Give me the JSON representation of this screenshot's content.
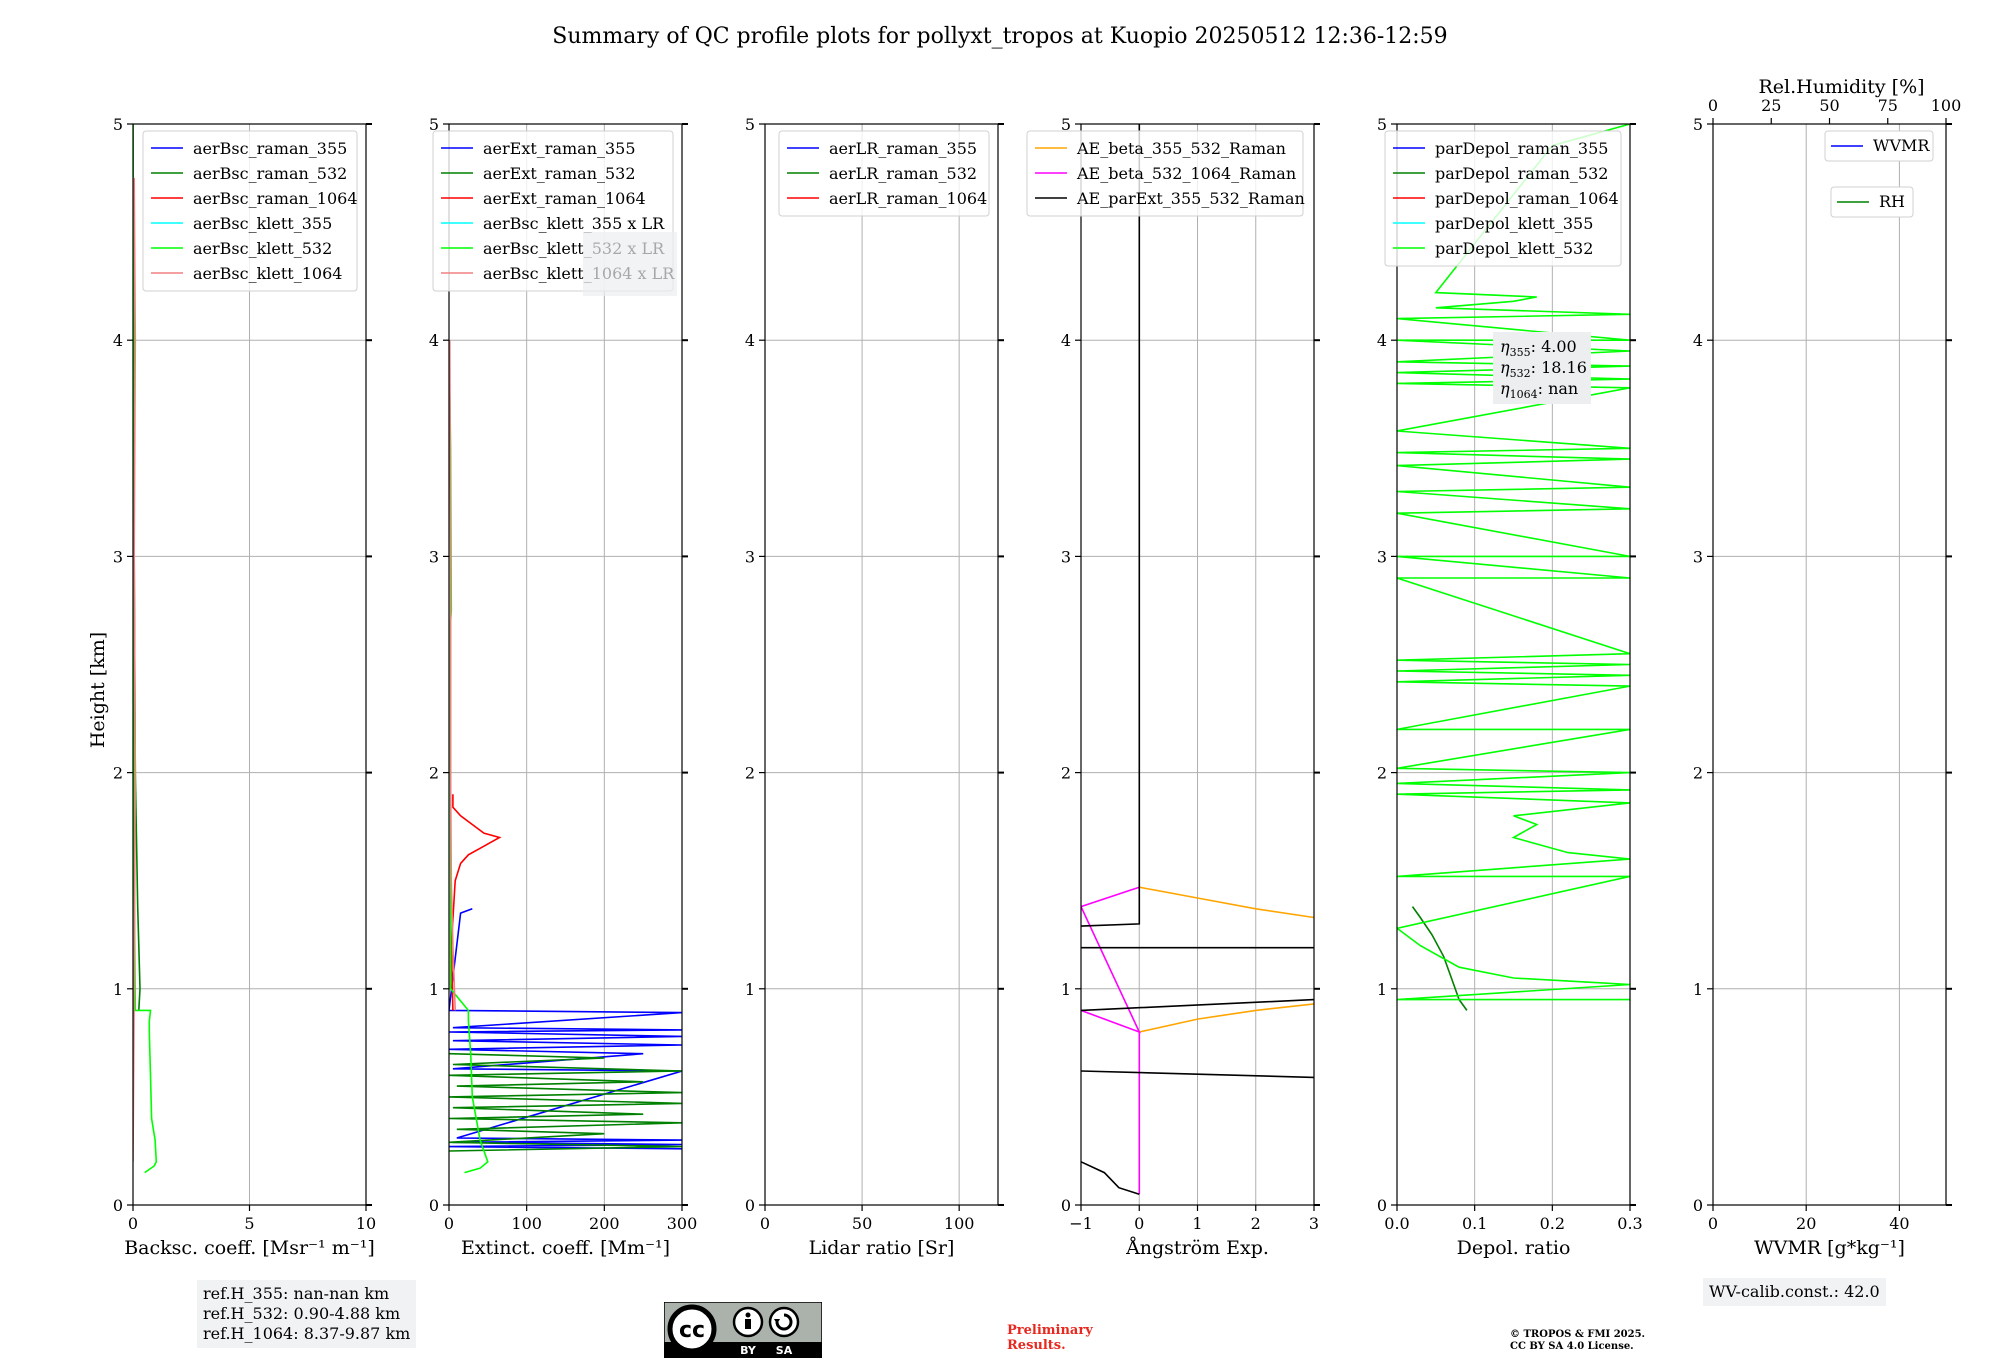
{
  "title": "Summary of QC profile plots for pollyxt_tropos at Kuopio 20250512 12:36-12:59",
  "chart_data": [
    {
      "type": "line",
      "panel": "backscatter",
      "xlabel": "Backsc. coeff. [Msr$^{-1}$ m$^{-1}$]",
      "xlabel_display": "Backsc. coeff. [Msr⁻¹ m⁻¹]",
      "ylabel": "Height [km]",
      "xlim": [
        0,
        10
      ],
      "ylim": [
        0,
        5
      ],
      "xticks": [
        0,
        5,
        10
      ],
      "yticks": [
        0,
        1,
        2,
        3,
        4,
        5
      ],
      "grid": true,
      "legend": "upper-right",
      "series": [
        {
          "name": "aerBsc_raman_355",
          "color": "#0000ff",
          "x": [],
          "y": []
        },
        {
          "name": "aerBsc_raman_532",
          "color": "#008000",
          "x": [
            0.25,
            0.3,
            0.25,
            0.2,
            0.1,
            0.05,
            0.0
          ],
          "y": [
            0.9,
            1.0,
            1.2,
            1.38,
            2.0,
            3.0,
            5.0
          ]
        },
        {
          "name": "aerBsc_raman_1064",
          "color": "#ff0000",
          "x": [],
          "y": []
        },
        {
          "name": "aerBsc_klett_355",
          "color": "#00ffff",
          "x": [],
          "y": []
        },
        {
          "name": "aerBsc_klett_532",
          "color": "#00ff00",
          "x": [
            0.5,
            0.9,
            1.0,
            0.95,
            0.8,
            0.75,
            0.7,
            0.7,
            0.75,
            0.1,
            0.05,
            0.05,
            0.0
          ],
          "y": [
            0.15,
            0.18,
            0.2,
            0.3,
            0.4,
            0.6,
            0.8,
            0.85,
            0.9,
            0.9,
            1.5,
            3.0,
            5.0
          ]
        },
        {
          "name": "aerBsc_klett_1064",
          "color": "#f08080",
          "x": [
            0.0,
            0.05,
            0.1,
            0.05,
            0.1,
            0.05
          ],
          "y": [
            0.2,
            1.0,
            2.0,
            3.0,
            4.0,
            4.75
          ]
        }
      ]
    },
    {
      "type": "line",
      "panel": "extinction",
      "xlabel": "Extinct. coeff. [Mm$^{-1}$]",
      "xlabel_display": "Extinct. coeff. [Mm⁻¹]",
      "xlim": [
        0,
        300
      ],
      "ylim": [
        0,
        5
      ],
      "xticks": [
        0,
        100,
        200,
        300
      ],
      "yticks": [
        0,
        1,
        2,
        3,
        4,
        5
      ],
      "grid": true,
      "legend": "upper-right",
      "series": [
        {
          "name": "aerExt_raman_355",
          "color": "#0000ff",
          "x": [
            300,
            0,
            300,
            5,
            300,
            10,
            300,
            5,
            250,
            0,
            300,
            5,
            300,
            0,
            300,
            5,
            300,
            0,
            15,
            30
          ],
          "y": [
            0.26,
            0.27,
            0.28,
            0.29,
            0.3,
            0.31,
            0.62,
            0.63,
            0.7,
            0.72,
            0.74,
            0.76,
            0.78,
            0.8,
            0.81,
            0.82,
            0.89,
            0.9,
            1.35,
            1.37
          ]
        },
        {
          "name": "aerExt_raman_532",
          "color": "#008000",
          "x": [
            0,
            300,
            0,
            200,
            10,
            300,
            0,
            250,
            5,
            300,
            0,
            300,
            10,
            250,
            0,
            300,
            5,
            200,
            0
          ],
          "y": [
            0.25,
            0.27,
            0.29,
            0.33,
            0.35,
            0.38,
            0.4,
            0.42,
            0.45,
            0.47,
            0.5,
            0.52,
            0.55,
            0.57,
            0.6,
            0.62,
            0.65,
            0.68,
            0.7
          ]
        },
        {
          "name": "aerExt_raman_1064",
          "color": "#ff0000",
          "x": [
            5,
            3,
            8,
            15,
            25,
            40,
            55,
            65,
            45,
            30,
            15,
            5,
            5
          ],
          "y": [
            0.9,
            1.2,
            1.5,
            1.58,
            1.62,
            1.65,
            1.68,
            1.7,
            1.72,
            1.76,
            1.8,
            1.84,
            1.9
          ]
        },
        {
          "name": "aerBsc_klett_355 x LR",
          "color": "#00ffff",
          "x": [],
          "y": []
        },
        {
          "name": "aerBsc_klett_532 x LR",
          "color": "#00ff00",
          "x": [
            20,
            40,
            50,
            40,
            35,
            30,
            28,
            25,
            25,
            2,
            2,
            3,
            2,
            1
          ],
          "y": [
            0.15,
            0.17,
            0.2,
            0.3,
            0.4,
            0.5,
            0.7,
            0.85,
            0.9,
            1.0,
            2.7,
            2.75,
            3.5,
            3.75
          ]
        },
        {
          "name": "aerBsc_klett_1064 x LR",
          "color": "#f08080",
          "x": [
            8,
            5,
            3,
            2,
            2,
            1
          ],
          "y": [
            0.9,
            1.2,
            1.5,
            2.0,
            3.0,
            4.0
          ]
        }
      ]
    },
    {
      "type": "line",
      "panel": "lidar-ratio",
      "xlabel": "Lidar ratio [Sr]",
      "xlim": [
        0,
        120
      ],
      "ylim": [
        0,
        5
      ],
      "xticks": [
        0,
        50,
        100
      ],
      "yticks": [
        0,
        1,
        2,
        3,
        4,
        5
      ],
      "grid": true,
      "legend": "upper-right",
      "series": [
        {
          "name": "aerLR_raman_355",
          "color": "#0000ff",
          "x": [],
          "y": []
        },
        {
          "name": "aerLR_raman_532",
          "color": "#008000",
          "x": [],
          "y": []
        },
        {
          "name": "aerLR_raman_1064",
          "color": "#ff0000",
          "x": [],
          "y": []
        }
      ]
    },
    {
      "type": "line",
      "panel": "angstrom",
      "xlabel": "Ångström Exp.",
      "xlim": [
        -1,
        3
      ],
      "ylim": [
        0,
        5
      ],
      "xticks": [
        -1,
        0,
        1,
        2,
        3
      ],
      "yticks": [
        0,
        1,
        2,
        3,
        4,
        5
      ],
      "grid": true,
      "legend": "upper-right",
      "series": [
        {
          "name": "AE_beta_355_532_Raman",
          "color": "#ffa500",
          "x": [
            0.0,
            1.0,
            2.0,
            3.0,
            null,
            0.0,
            1.0,
            2.0,
            3.0
          ],
          "y": [
            0.8,
            0.86,
            0.9,
            0.93,
            null,
            1.47,
            1.42,
            1.37,
            1.33
          ]
        },
        {
          "name": "AE_beta_532_1064_Raman",
          "color": "#ff00ff",
          "x": [
            0.0,
            0.0,
            -1.0,
            0.0,
            -1.0,
            0.0
          ],
          "y": [
            0.05,
            0.8,
            0.9,
            0.8,
            1.38,
            1.47
          ]
        },
        {
          "name": "AE_parExt_355_532_Raman",
          "color": "#000000",
          "x": [
            -1.0,
            -0.6,
            -0.35,
            0.0,
            null,
            -1.0,
            3.0,
            null,
            -1.0,
            3.0,
            null,
            -1.0,
            3.0,
            null,
            -1.0,
            0.0,
            0.0
          ],
          "y": [
            0.2,
            0.15,
            0.08,
            0.05,
            null,
            0.62,
            0.59,
            null,
            0.9,
            0.95,
            null,
            1.19,
            1.19,
            null,
            1.29,
            1.3,
            5.0
          ]
        }
      ]
    },
    {
      "type": "line",
      "panel": "depolarization",
      "xlabel": "Depol. ratio",
      "xlim": [
        0.0,
        0.3
      ],
      "ylim": [
        0,
        5
      ],
      "xticks": [
        0.0,
        0.1,
        0.2,
        0.3
      ],
      "yticks": [
        0,
        1,
        2,
        3,
        4,
        5
      ],
      "grid": true,
      "legend": "upper-left",
      "series": [
        {
          "name": "parDepol_raman_355",
          "color": "#0000ff",
          "x": [],
          "y": []
        },
        {
          "name": "parDepol_raman_532",
          "color": "#008000",
          "x": [
            0.09,
            0.08,
            0.07,
            0.06,
            0.045,
            0.03,
            0.02
          ],
          "y": [
            0.9,
            0.95,
            1.05,
            1.15,
            1.25,
            1.33,
            1.38
          ]
        },
        {
          "name": "parDepol_raman_1064",
          "color": "#ff0000",
          "x": [],
          "y": []
        },
        {
          "name": "parDepol_klett_355",
          "color": "#00ffff",
          "x": [],
          "y": []
        },
        {
          "name": "parDepol_klett_532",
          "color": "#00ff00",
          "x": [
            0.3,
            0.0,
            0.3,
            0.25,
            0.15,
            0.08,
            0.03,
            0.0,
            0.3,
            0.0,
            0.3,
            0.22,
            0.15,
            0.18,
            0.15,
            0.25,
            0.3,
            0.0,
            0.3,
            0.0,
            0.3,
            0.0,
            0.3,
            0.0,
            0.3,
            0.0,
            0.3,
            0.0,
            0.3,
            0.0,
            0.3,
            0.0,
            0.3,
            0.0,
            0.3,
            0.0,
            0.3,
            0.0,
            0.3,
            0.0,
            0.3,
            0.0,
            0.3,
            0.0,
            0.3,
            0.0,
            0.3,
            0.0,
            0.3,
            0.0,
            0.3,
            0.0,
            0.3,
            0.0,
            0.3,
            0.05,
            0.15,
            0.18,
            0.05,
            0.2,
            0.3
          ],
          "y": [
            0.95,
            0.95,
            1.02,
            1.03,
            1.05,
            1.1,
            1.2,
            1.28,
            1.52,
            1.52,
            1.6,
            1.63,
            1.7,
            1.76,
            1.8,
            1.84,
            1.86,
            1.9,
            1.92,
            1.95,
            2.0,
            2.02,
            2.2,
            2.2,
            2.4,
            2.42,
            2.45,
            2.47,
            2.5,
            2.52,
            2.55,
            2.9,
            2.9,
            3.0,
            3.0,
            3.2,
            3.22,
            3.3,
            3.32,
            3.42,
            3.45,
            3.48,
            3.5,
            3.58,
            3.78,
            3.8,
            3.82,
            3.85,
            3.88,
            3.9,
            3.95,
            4.0,
            4.0,
            4.1,
            4.12,
            4.15,
            4.18,
            4.2,
            4.22,
            4.9,
            5.0
          ]
        }
      ]
    },
    {
      "type": "line",
      "panel": "wvmr",
      "xlabel": "WVMR [$g*kg^{-1}$]",
      "xlabel_display": "WVMR [g*kg⁻¹]",
      "xlim": [
        0,
        50
      ],
      "ylim": [
        0,
        5
      ],
      "xticks": [
        0,
        20,
        40
      ],
      "yticks": [
        0,
        1,
        2,
        3,
        4,
        5
      ],
      "secondary_xlabel": "Rel.Humidity [%]",
      "secondary_xlim": [
        0,
        100
      ],
      "secondary_xticks": [
        0,
        25,
        50,
        75,
        100
      ],
      "grid": true,
      "legend": "upper-right",
      "series": [
        {
          "name": "WVMR",
          "color": "#0000ff",
          "x": [],
          "y": []
        },
        {
          "name": "RH",
          "color": "#008000",
          "x": [],
          "y": []
        }
      ]
    }
  ],
  "annotations": {
    "eta": [
      {
        "label": "η",
        "sub": "355",
        "value": ": 4.00"
      },
      {
        "label": "η",
        "sub": "532",
        "value": ": 18.16"
      },
      {
        "label": "η",
        "sub": "1064",
        "value": ": nan"
      }
    ],
    "ref_heights": [
      "ref.H_355: nan-nan km",
      "ref.H_532: 0.90-4.88 km",
      "ref.H_1064: 8.37-9.87 km"
    ],
    "wv_calib": "WV-calib.const.: 42.0",
    "preliminary": [
      "Preliminary",
      "Results."
    ],
    "copyright": [
      "© TROPOS & FMI 2025.",
      "CC BY SA 4.0 License."
    ],
    "license_badge": {
      "cc": "cc",
      "by": "BY",
      "sa": "SA"
    }
  }
}
